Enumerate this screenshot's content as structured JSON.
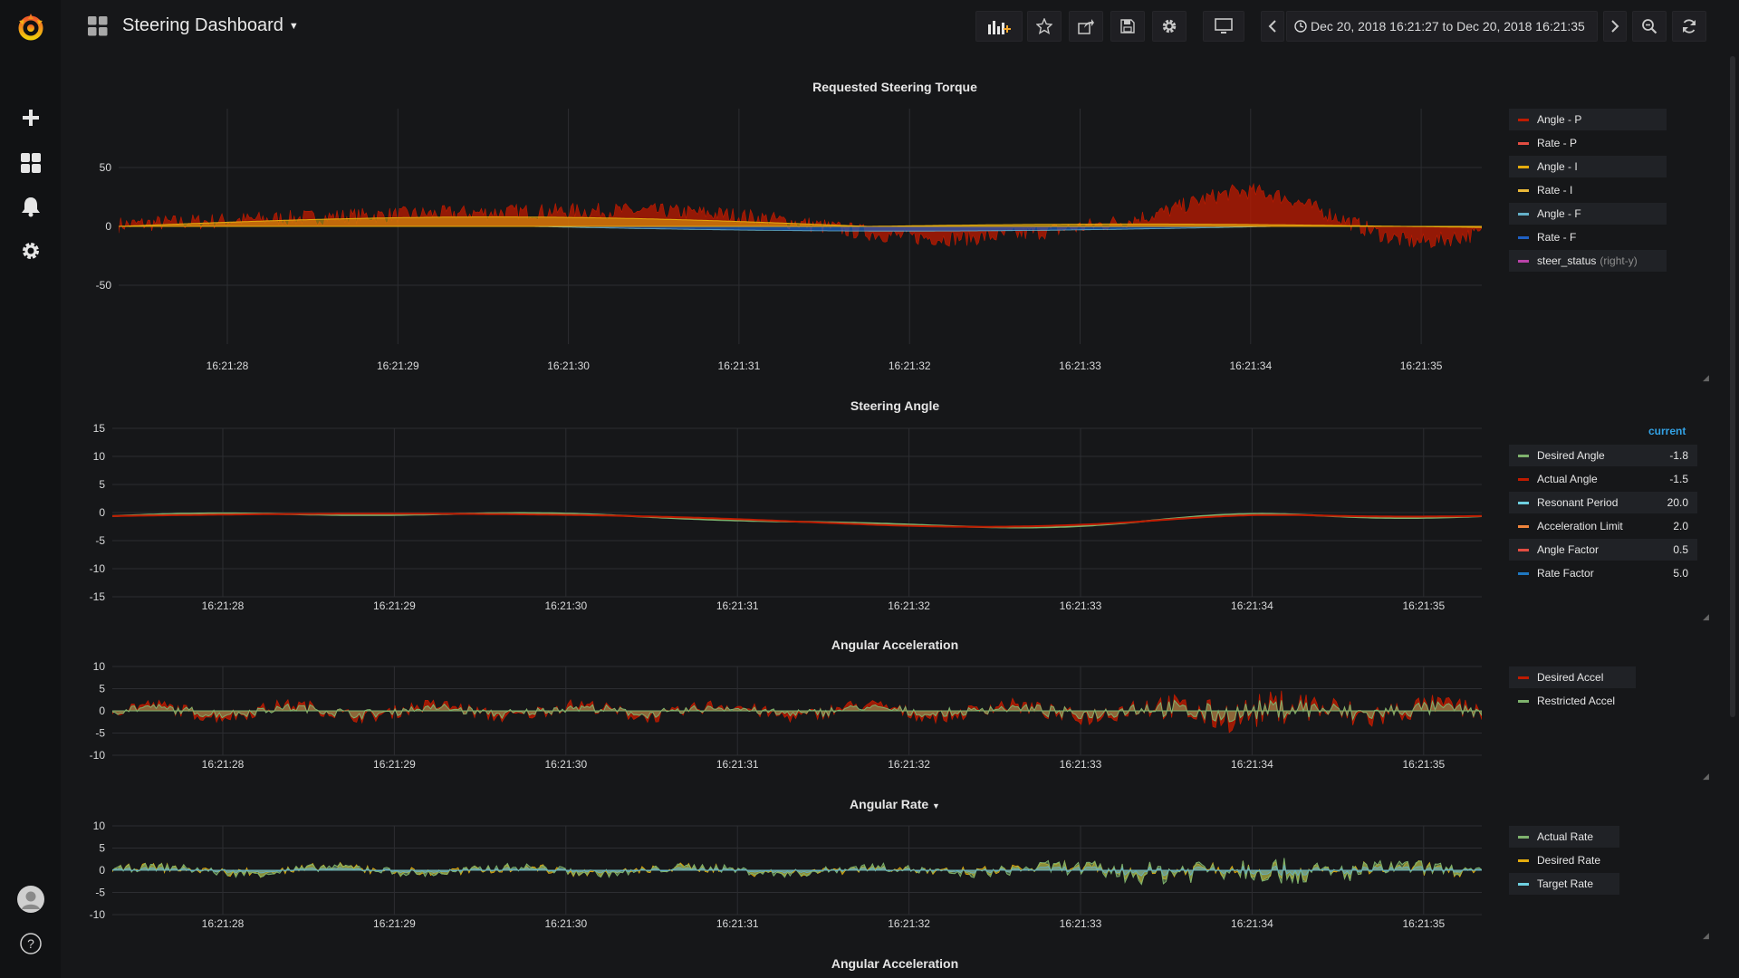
{
  "app": {
    "title": "Steering Dashboard",
    "time_range": "Dec 20, 2018 16:21:27 to Dec 20, 2018 16:21:35"
  },
  "sidemenu": {
    "items": [
      {
        "icon": "grafana-logo-icon"
      },
      {
        "icon": "plus-icon"
      },
      {
        "icon": "dashboards-icon"
      },
      {
        "icon": "bell-icon"
      },
      {
        "icon": "gear-icon"
      },
      {
        "icon": "user-avatar-icon"
      },
      {
        "icon": "help-icon",
        "label": "?"
      }
    ]
  },
  "toolbar": {
    "buttons": [
      "add-panel-icon",
      "star-icon",
      "share-icon",
      "save-icon",
      "settings-icon",
      "tv-mode-icon",
      "chevron-left-icon",
      "clock-icon",
      "chevron-right-icon",
      "zoom-out-icon",
      "refresh-icon"
    ]
  },
  "colors": {
    "red": "#bf1b00",
    "yellow": "#e5ac0e",
    "light_blue": "#64b0c8",
    "blue": "#1f60c4",
    "magenta": "#e24d42",
    "green": "#7eb26d",
    "orange": "#ef843c",
    "pink": "#ba43a9",
    "accent": "#33a2e5"
  },
  "time_ticks": [
    "16:21:28",
    "16:21:29",
    "16:21:30",
    "16:21:31",
    "16:21:32",
    "16:21:33",
    "16:21:34",
    "16:21:35"
  ],
  "panels": [
    {
      "title": "Requested Steering Torque",
      "yticks": [
        "50",
        "0",
        "-50"
      ],
      "legend": [
        {
          "name": "Angle - P",
          "color": "#bf1b00"
        },
        {
          "name": "Rate - P",
          "color": "#e24d42"
        },
        {
          "name": "Angle - I",
          "color": "#e5ac0e"
        },
        {
          "name": "Rate - I",
          "color": "#eab839"
        },
        {
          "name": "Angle - F",
          "color": "#64b0c8"
        },
        {
          "name": "Rate - F",
          "color": "#1f60c4"
        },
        {
          "name": "steer_status",
          "color": "#ba43a9",
          "suffix": "(right-y)"
        }
      ]
    },
    {
      "title": "Steering Angle",
      "yticks": [
        "15",
        "10",
        "5",
        "0",
        "-5",
        "-10",
        "-15"
      ],
      "legend_header": "current",
      "legend": [
        {
          "name": "Desired Angle",
          "color": "#7eb26d",
          "value": "-1.8"
        },
        {
          "name": "Actual Angle",
          "color": "#bf1b00",
          "value": "-1.5"
        },
        {
          "name": "Resonant Period",
          "color": "#6ed0e0",
          "value": "20.0"
        },
        {
          "name": "Acceleration Limit",
          "color": "#ef843c",
          "value": "2.0"
        },
        {
          "name": "Angle Factor",
          "color": "#e24d42",
          "value": "0.5"
        },
        {
          "name": "Rate Factor",
          "color": "#1f78c1",
          "value": "5.0"
        }
      ]
    },
    {
      "title": "Angular Acceleration",
      "yticks": [
        "10",
        "5",
        "0",
        "-5",
        "-10"
      ],
      "legend": [
        {
          "name": "Desired Accel",
          "color": "#bf1b00"
        },
        {
          "name": "Restricted Accel",
          "color": "#7eb26d"
        }
      ]
    },
    {
      "title": "Angular Rate",
      "yticks": [
        "10",
        "5",
        "0",
        "-5",
        "-10"
      ],
      "legend": [
        {
          "name": "Actual Rate",
          "color": "#7eb26d"
        },
        {
          "name": "Desired Rate",
          "color": "#e5ac0e"
        },
        {
          "name": "Target Rate",
          "color": "#6ed0e0"
        }
      ]
    },
    {
      "title": "Angular Acceleration"
    }
  ]
}
